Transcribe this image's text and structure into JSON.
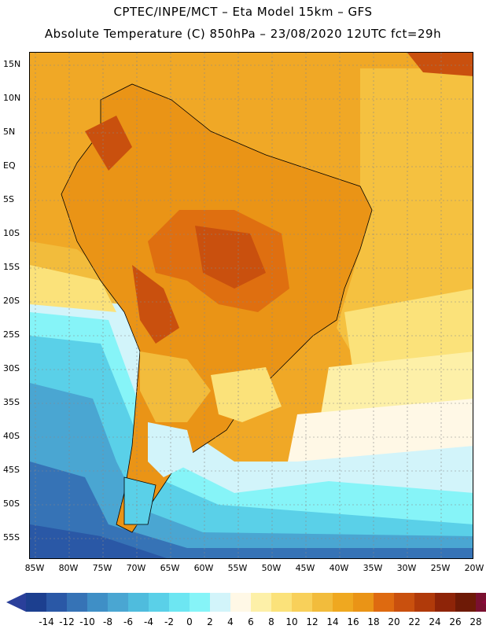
{
  "title_line1": "CPTEC/INPE/MCT –  Eta Model 15km – GFS",
  "title_line2": "Absolute Temperature (C) 850hPa – 23/08/2020 12UTC fct=29h",
  "lat_labels": [
    "15N",
    "10N",
    "5N",
    "EQ",
    "5S",
    "10S",
    "15S",
    "20S",
    "25S",
    "30S",
    "35S",
    "40S",
    "45S",
    "50S",
    "55S"
  ],
  "lon_labels": [
    "85W",
    "80W",
    "75W",
    "70W",
    "65W",
    "60W",
    "55W",
    "50W",
    "45W",
    "40W",
    "35W",
    "30W",
    "25W",
    "20W"
  ],
  "colorbar": {
    "labels": [
      "-14",
      "-12",
      "-10",
      "-8",
      "-6",
      "-4",
      "-2",
      "0",
      "2",
      "4",
      "6",
      "8",
      "10",
      "12",
      "14",
      "16",
      "18",
      "20",
      "22",
      "24",
      "26",
      "28"
    ],
    "colors": [
      "#1c3f8f",
      "#2a58a6",
      "#3673b6",
      "#3f8fc6",
      "#4aa6d2",
      "#4fbcdd",
      "#5ad0e8",
      "#6de6f2",
      "#86f4f8",
      "#d2f4fa",
      "#fff8e6",
      "#fdf0a8",
      "#fbe27a",
      "#f8d05a",
      "#f2bc3c",
      "#efa820",
      "#ea9416",
      "#de6a10",
      "#c9500e",
      "#b03a0a",
      "#8e2408",
      "#6e1a06",
      "#7a1030"
    ],
    "low_color": "#2a3f9a",
    "high_color": "#8a0a3a"
  }
}
